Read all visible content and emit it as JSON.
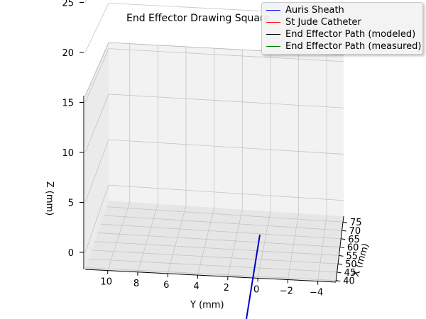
{
  "chart_data": {
    "type": "line3d",
    "title": "End Effector Drawing Square",
    "xlabel": "X (mm)",
    "ylabel": "Y (mm)",
    "zlabel": "Z (mm)",
    "x_ticks": [
      "40",
      "45",
      "50",
      "55",
      "60",
      "65",
      "70",
      "75"
    ],
    "y_ticks": [
      "10",
      "8",
      "6",
      "4",
      "2",
      "0",
      "−2",
      "−4"
    ],
    "z_ticks": [
      "0",
      "5",
      "10",
      "15",
      "20",
      "25"
    ],
    "grid": true,
    "legend_position": "top-right",
    "series": [
      {
        "name": "Auris Sheath",
        "color": "#0000ff"
      },
      {
        "name": "St Jude Catheter",
        "color": "#ff0000"
      },
      {
        "name": "End Effector Path (modeled)",
        "color": "#000000"
      },
      {
        "name": "End Effector Path (measured)",
        "color": "#008000"
      }
    ]
  }
}
